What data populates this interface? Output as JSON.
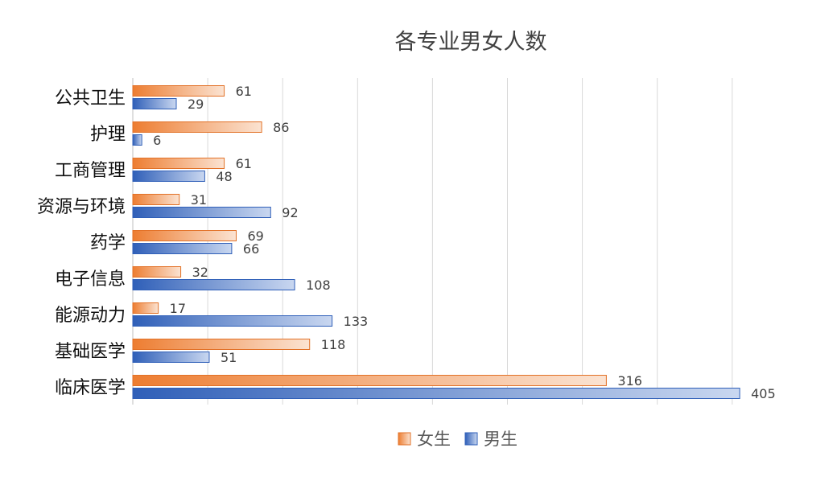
{
  "chart_data": {
    "type": "bar",
    "orientation": "horizontal",
    "title": "各专业男女人数",
    "categories": [
      "公共卫生",
      "护理",
      "工商管理",
      "资源与环境",
      "药学",
      "电子信息",
      "能源动力",
      "基础医学",
      "临床医学"
    ],
    "series": [
      {
        "name": "女生",
        "values": [
          61,
          86,
          61,
          31,
          69,
          32,
          17,
          118,
          316
        ],
        "color": "#ed7d31"
      },
      {
        "name": "男生",
        "values": [
          29,
          6,
          48,
          92,
          66,
          108,
          133,
          51,
          405
        ],
        "color": "#4472c4"
      }
    ],
    "xlim": [
      0,
      400
    ],
    "x_tick_step": 50,
    "grid": true,
    "legend_position": "bottom"
  }
}
